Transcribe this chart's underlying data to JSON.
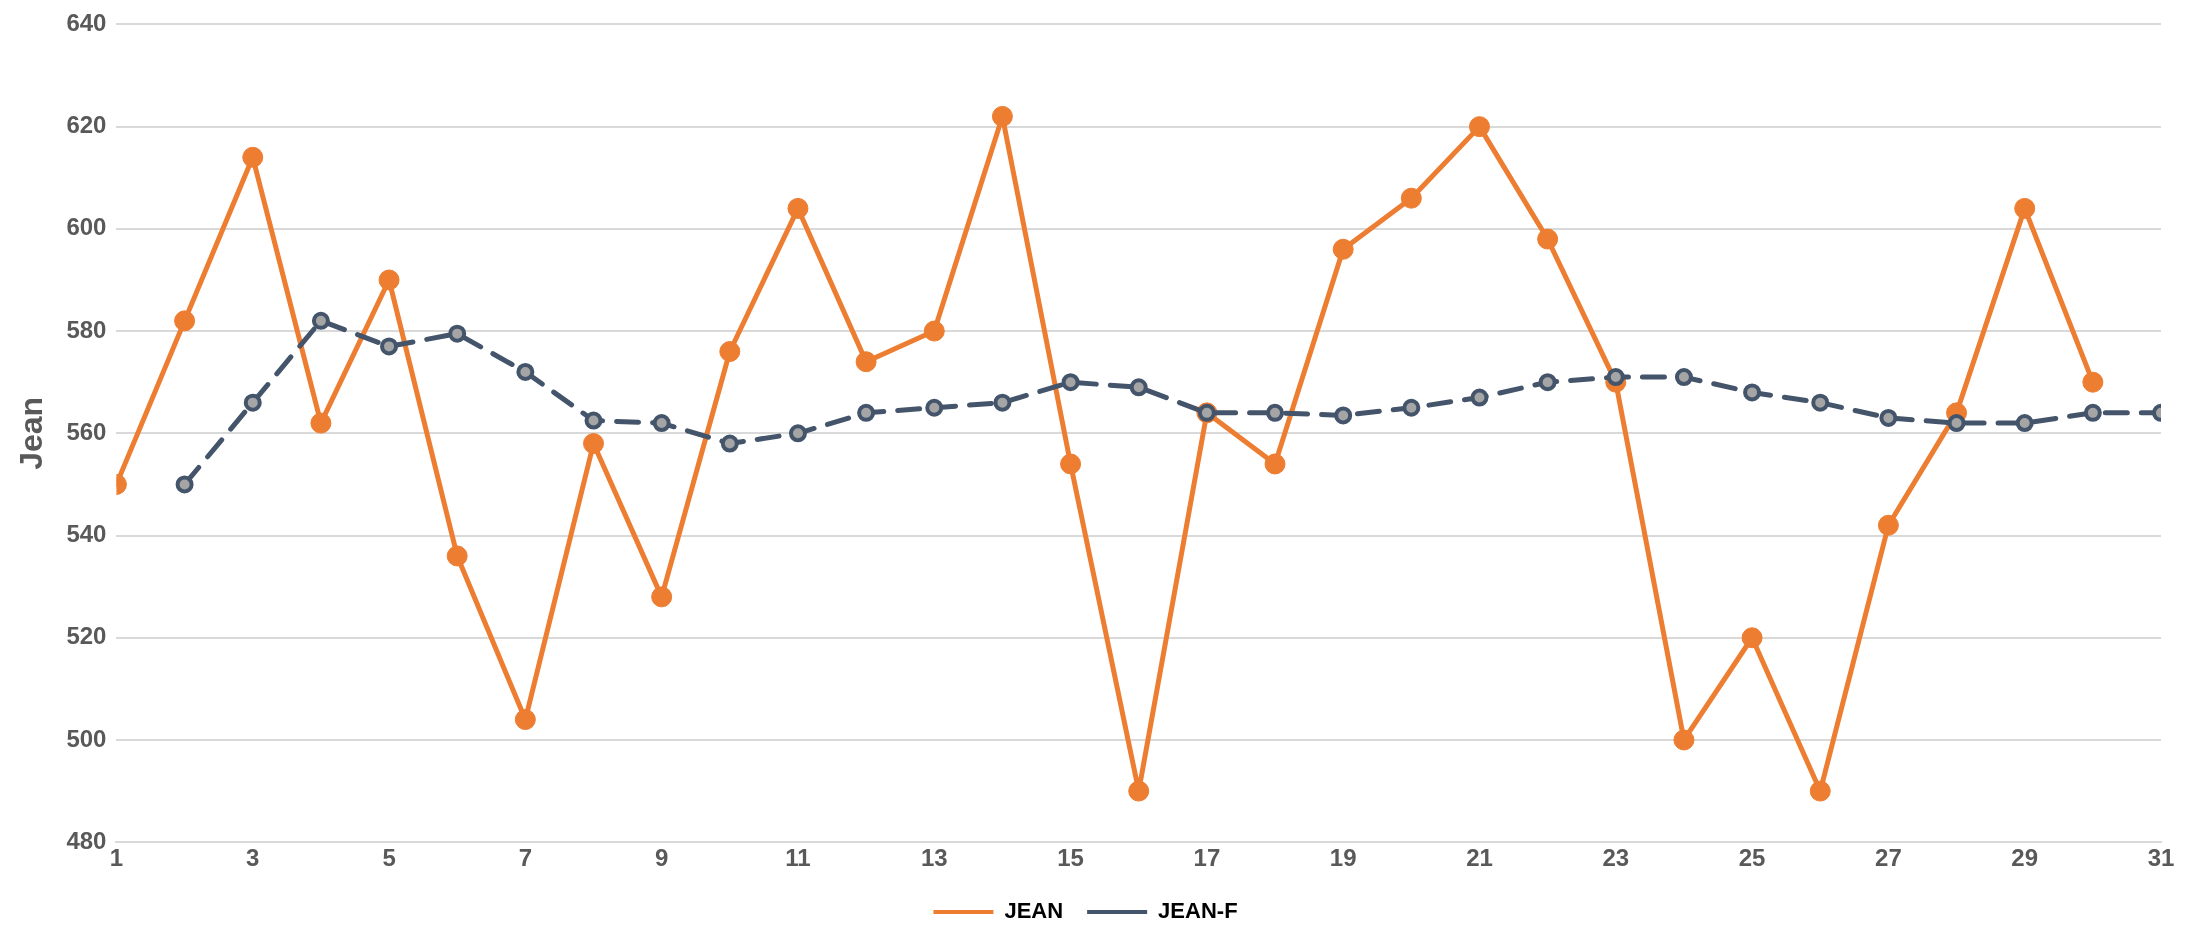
{
  "chart_data": {
    "type": "line",
    "ylabel": "Jean",
    "x": [
      1,
      2,
      3,
      4,
      5,
      6,
      7,
      8,
      9,
      10,
      11,
      12,
      13,
      14,
      15,
      16,
      17,
      18,
      19,
      20,
      21,
      22,
      23,
      24,
      25,
      26,
      27,
      28,
      29,
      30,
      31
    ],
    "xlim": [
      1,
      31
    ],
    "xticks": [
      1,
      3,
      5,
      7,
      9,
      11,
      13,
      15,
      17,
      19,
      21,
      23,
      25,
      27,
      29,
      31
    ],
    "ylim": [
      480,
      640
    ],
    "yticks": [
      480,
      500,
      520,
      540,
      560,
      580,
      600,
      620,
      640
    ],
    "grid": "y",
    "legend": "bottom",
    "marker": "circle",
    "series": [
      {
        "name": "JEAN",
        "color": "#ed7d31",
        "line_style": "solid",
        "values": [
          550,
          582,
          614,
          562,
          590,
          536,
          504,
          558,
          528,
          576,
          604,
          574,
          580,
          622,
          554,
          490,
          564,
          554,
          596,
          606,
          620,
          598,
          570,
          500,
          520,
          490,
          542,
          564,
          604,
          570,
          null
        ]
      },
      {
        "name": "JEAN-F",
        "color": "#44546a",
        "line_style": "dashed",
        "values": [
          null,
          550,
          566,
          582,
          577,
          579.5,
          572,
          562.5,
          562,
          558,
          560,
          564,
          565,
          566,
          570,
          569,
          564,
          564,
          563.5,
          565,
          567,
          570,
          571,
          571,
          568,
          566,
          563,
          562,
          562,
          564,
          564
        ]
      }
    ]
  }
}
